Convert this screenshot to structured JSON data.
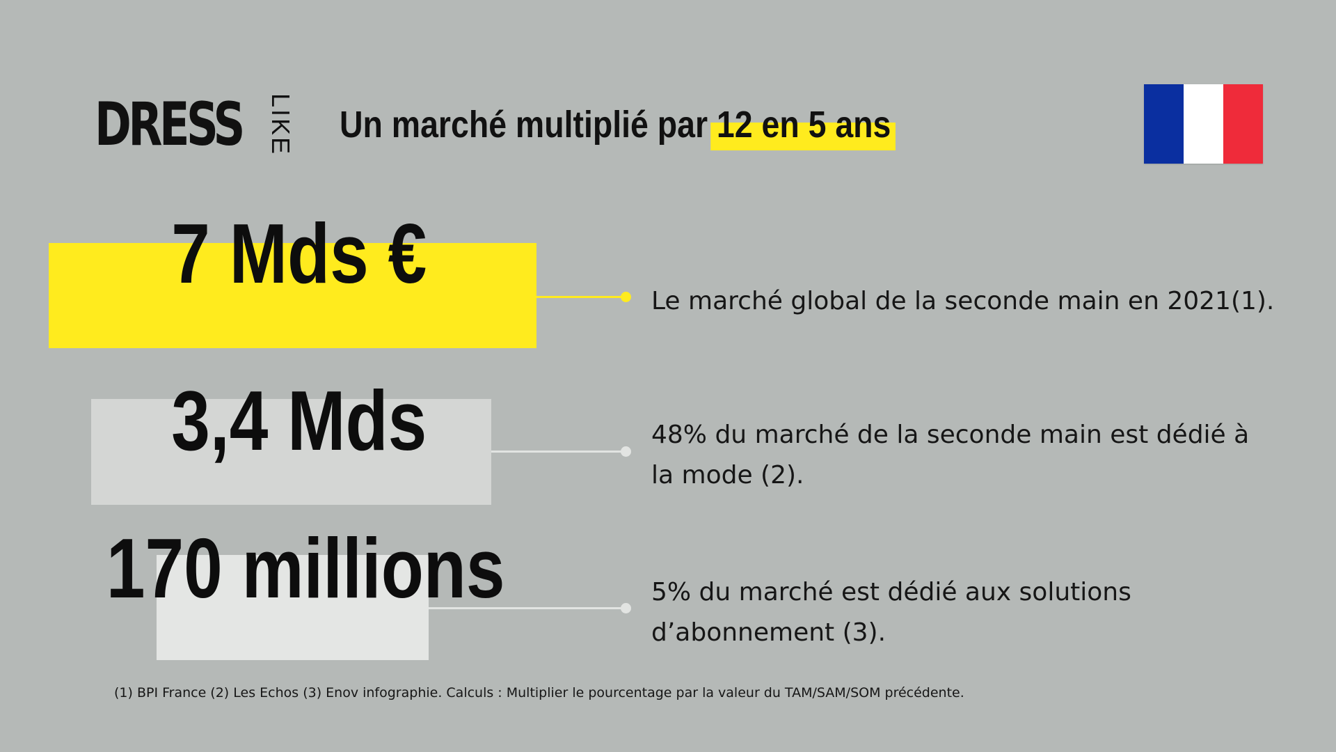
{
  "logo": {
    "main": "DRESS",
    "side": "LIKE"
  },
  "headline": {
    "prefix": "Un marché multiplié par ",
    "highlight": "12 en 5 ans"
  },
  "flag": {
    "name": "france-flag",
    "colors": [
      "#0a2fa0",
      "#ffffff",
      "#ef2b3a"
    ]
  },
  "stats": [
    {
      "value": "7 Mds €",
      "description": "Le marché global de la seconde main en 2021(1).",
      "bar_color": "#ffeb1e"
    },
    {
      "value": "3,4 Mds",
      "description": "48% du marché de la seconde main est dédié à la mode (2).",
      "bar_color": "#d4d6d4"
    },
    {
      "value": "170 millions",
      "description": "5% du marché est dédié aux solutions d’abonnement (3).",
      "bar_color": "#e4e6e4"
    }
  ],
  "footnote": "(1) BPI France (2) Les Echos (3) Enov infographie. Calculs : Multiplier le pourcentage par la valeur du TAM/SAM/SOM précédente.",
  "colors": {
    "background": "#b5b9b7",
    "accent": "#ffeb1e"
  }
}
